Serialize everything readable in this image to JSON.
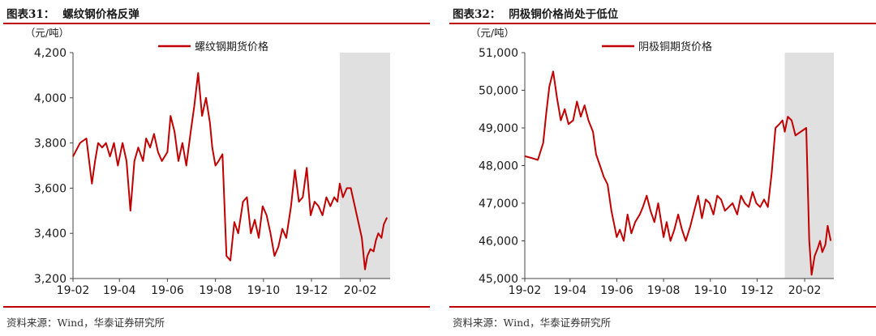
{
  "panels": [
    {
      "figure_label": "图表31：",
      "figure_title": "螺纹钢价格反弹",
      "source": "资料来源：Wind，华泰证券研究所"
    },
    {
      "figure_label": "图表32：",
      "figure_title": "阴极铜价格尚处于低位",
      "source": "资料来源：Wind，华泰证券研究所"
    }
  ],
  "colors": {
    "accent": "#c00000",
    "series": "#c00000",
    "highlight": "#e0e0e0"
  },
  "chart_data": [
    {
      "type": "line",
      "title": "",
      "ylabel": "（元/吨）",
      "xlabel": "",
      "ylim": [
        3200,
        4200
      ],
      "yticks": [
        3200,
        3400,
        3600,
        3800,
        4000,
        4200
      ],
      "ytick_labels": [
        "3,200",
        "3,400",
        "3,600",
        "3,800",
        "4,000",
        "4,200"
      ],
      "xlim": [
        "2019-02-01",
        "2020-03-10"
      ],
      "xticks": [
        "2019-02-01",
        "2019-04-01",
        "2019-06-01",
        "2019-08-01",
        "2019-10-01",
        "2019-12-01",
        "2020-02-01"
      ],
      "xtick_labels": [
        "19-02",
        "19-04",
        "19-06",
        "19-08",
        "19-10",
        "19-12",
        "20-02"
      ],
      "grid": false,
      "legend": "top-center",
      "shaded_region": [
        "2020-01-06",
        "2020-03-10"
      ],
      "series": [
        {
          "name": "螺纹钢期货价格",
          "x": [
            "2019-02-01",
            "2019-02-10",
            "2019-02-18",
            "2019-02-25",
            "2019-03-01",
            "2019-03-05",
            "2019-03-10",
            "2019-03-15",
            "2019-03-20",
            "2019-03-25",
            "2019-03-30",
            "2019-04-05",
            "2019-04-10",
            "2019-04-15",
            "2019-04-20",
            "2019-04-25",
            "2019-05-01",
            "2019-05-05",
            "2019-05-10",
            "2019-05-15",
            "2019-05-20",
            "2019-05-25",
            "2019-06-01",
            "2019-06-05",
            "2019-06-10",
            "2019-06-15",
            "2019-06-20",
            "2019-06-25",
            "2019-07-01",
            "2019-07-05",
            "2019-07-10",
            "2019-07-15",
            "2019-07-20",
            "2019-07-25",
            "2019-07-28",
            "2019-08-01",
            "2019-08-05",
            "2019-08-10",
            "2019-08-15",
            "2019-08-20",
            "2019-08-25",
            "2019-08-30",
            "2019-09-05",
            "2019-09-10",
            "2019-09-15",
            "2019-09-20",
            "2019-09-25",
            "2019-09-30",
            "2019-10-05",
            "2019-10-10",
            "2019-10-15",
            "2019-10-20",
            "2019-10-25",
            "2019-10-30",
            "2019-11-05",
            "2019-11-10",
            "2019-11-15",
            "2019-11-20",
            "2019-11-25",
            "2019-11-30",
            "2019-12-05",
            "2019-12-10",
            "2019-12-15",
            "2019-12-20",
            "2019-12-25",
            "2019-12-30",
            "2020-01-03",
            "2020-01-06",
            "2020-01-10",
            "2020-01-15",
            "2020-01-20",
            "2020-02-03",
            "2020-02-07",
            "2020-02-10",
            "2020-02-14",
            "2020-02-18",
            "2020-02-21",
            "2020-02-24",
            "2020-02-28",
            "2020-03-02",
            "2020-03-06"
          ],
          "y": [
            3740,
            3800,
            3820,
            3620,
            3720,
            3800,
            3780,
            3800,
            3740,
            3800,
            3700,
            3800,
            3720,
            3500,
            3720,
            3780,
            3720,
            3820,
            3780,
            3840,
            3760,
            3720,
            3760,
            3920,
            3850,
            3720,
            3800,
            3700,
            3860,
            3960,
            4110,
            3920,
            4000,
            3890,
            3780,
            3700,
            3720,
            3750,
            3300,
            3280,
            3450,
            3400,
            3540,
            3560,
            3400,
            3460,
            3380,
            3520,
            3480,
            3400,
            3300,
            3340,
            3420,
            3380,
            3520,
            3680,
            3540,
            3560,
            3690,
            3480,
            3540,
            3520,
            3480,
            3560,
            3520,
            3560,
            3540,
            3620,
            3560,
            3600,
            3600,
            3380,
            3240,
            3300,
            3330,
            3320,
            3370,
            3400,
            3380,
            3440,
            3470
          ]
        }
      ]
    },
    {
      "type": "line",
      "title": "",
      "ylabel": "（元/吨）",
      "xlabel": "",
      "ylim": [
        45000,
        51000
      ],
      "yticks": [
        45000,
        46000,
        47000,
        48000,
        49000,
        50000,
        51000
      ],
      "ytick_labels": [
        "45,000",
        "46,000",
        "47,000",
        "48,000",
        "49,000",
        "50,000",
        "51,000"
      ],
      "xlim": [
        "2019-02-01",
        "2020-03-10"
      ],
      "xticks": [
        "2019-02-01",
        "2019-04-01",
        "2019-06-01",
        "2019-08-01",
        "2019-10-01",
        "2019-12-01",
        "2020-02-01"
      ],
      "xtick_labels": [
        "19-02",
        "19-04",
        "19-06",
        "19-08",
        "19-10",
        "19-12",
        "20-02"
      ],
      "grid": false,
      "legend": "top-center",
      "shaded_region": [
        "2020-01-06",
        "2020-03-10"
      ],
      "series": [
        {
          "name": "阴极铜期货价格",
          "x": [
            "2019-02-01",
            "2019-02-10",
            "2019-02-18",
            "2019-02-25",
            "2019-03-01",
            "2019-03-05",
            "2019-03-10",
            "2019-03-15",
            "2019-03-20",
            "2019-03-25",
            "2019-03-30",
            "2019-04-05",
            "2019-04-10",
            "2019-04-15",
            "2019-04-20",
            "2019-04-25",
            "2019-05-01",
            "2019-05-05",
            "2019-05-10",
            "2019-05-15",
            "2019-05-20",
            "2019-05-25",
            "2019-06-01",
            "2019-06-05",
            "2019-06-10",
            "2019-06-15",
            "2019-06-20",
            "2019-06-25",
            "2019-07-01",
            "2019-07-05",
            "2019-07-10",
            "2019-07-15",
            "2019-07-20",
            "2019-07-25",
            "2019-08-01",
            "2019-08-05",
            "2019-08-10",
            "2019-08-15",
            "2019-08-20",
            "2019-08-25",
            "2019-08-30",
            "2019-09-05",
            "2019-09-10",
            "2019-09-15",
            "2019-09-20",
            "2019-09-25",
            "2019-09-30",
            "2019-10-05",
            "2019-10-10",
            "2019-10-15",
            "2019-10-20",
            "2019-10-25",
            "2019-10-30",
            "2019-11-05",
            "2019-11-10",
            "2019-11-15",
            "2019-11-20",
            "2019-11-25",
            "2019-11-30",
            "2019-12-05",
            "2019-12-10",
            "2019-12-15",
            "2019-12-20",
            "2019-12-25",
            "2019-12-30",
            "2020-01-03",
            "2020-01-06",
            "2020-01-10",
            "2020-01-15",
            "2020-01-20",
            "2020-02-03",
            "2020-02-07",
            "2020-02-10",
            "2020-02-14",
            "2020-02-18",
            "2020-02-21",
            "2020-02-24",
            "2020-02-28",
            "2020-03-02",
            "2020-03-06"
          ],
          "y": [
            48250,
            48200,
            48150,
            48600,
            49400,
            50100,
            50500,
            49800,
            49200,
            49500,
            49100,
            49200,
            49700,
            49300,
            49600,
            49200,
            48900,
            48300,
            48000,
            47700,
            47500,
            46800,
            46100,
            46300,
            46000,
            46700,
            46200,
            46500,
            46700,
            46900,
            47200,
            46800,
            46500,
            47000,
            46100,
            46500,
            46000,
            46300,
            46700,
            46300,
            46000,
            46400,
            46800,
            47200,
            46600,
            47100,
            47000,
            46700,
            47200,
            47100,
            46800,
            46900,
            47000,
            46700,
            47200,
            47000,
            46900,
            47300,
            47000,
            46900,
            47100,
            46900,
            47800,
            49000,
            49100,
            49200,
            48900,
            49300,
            49200,
            48800,
            49000,
            46000,
            45100,
            45600,
            45800,
            46000,
            45700,
            45900,
            46400,
            46000
          ]
        }
      ]
    }
  ]
}
